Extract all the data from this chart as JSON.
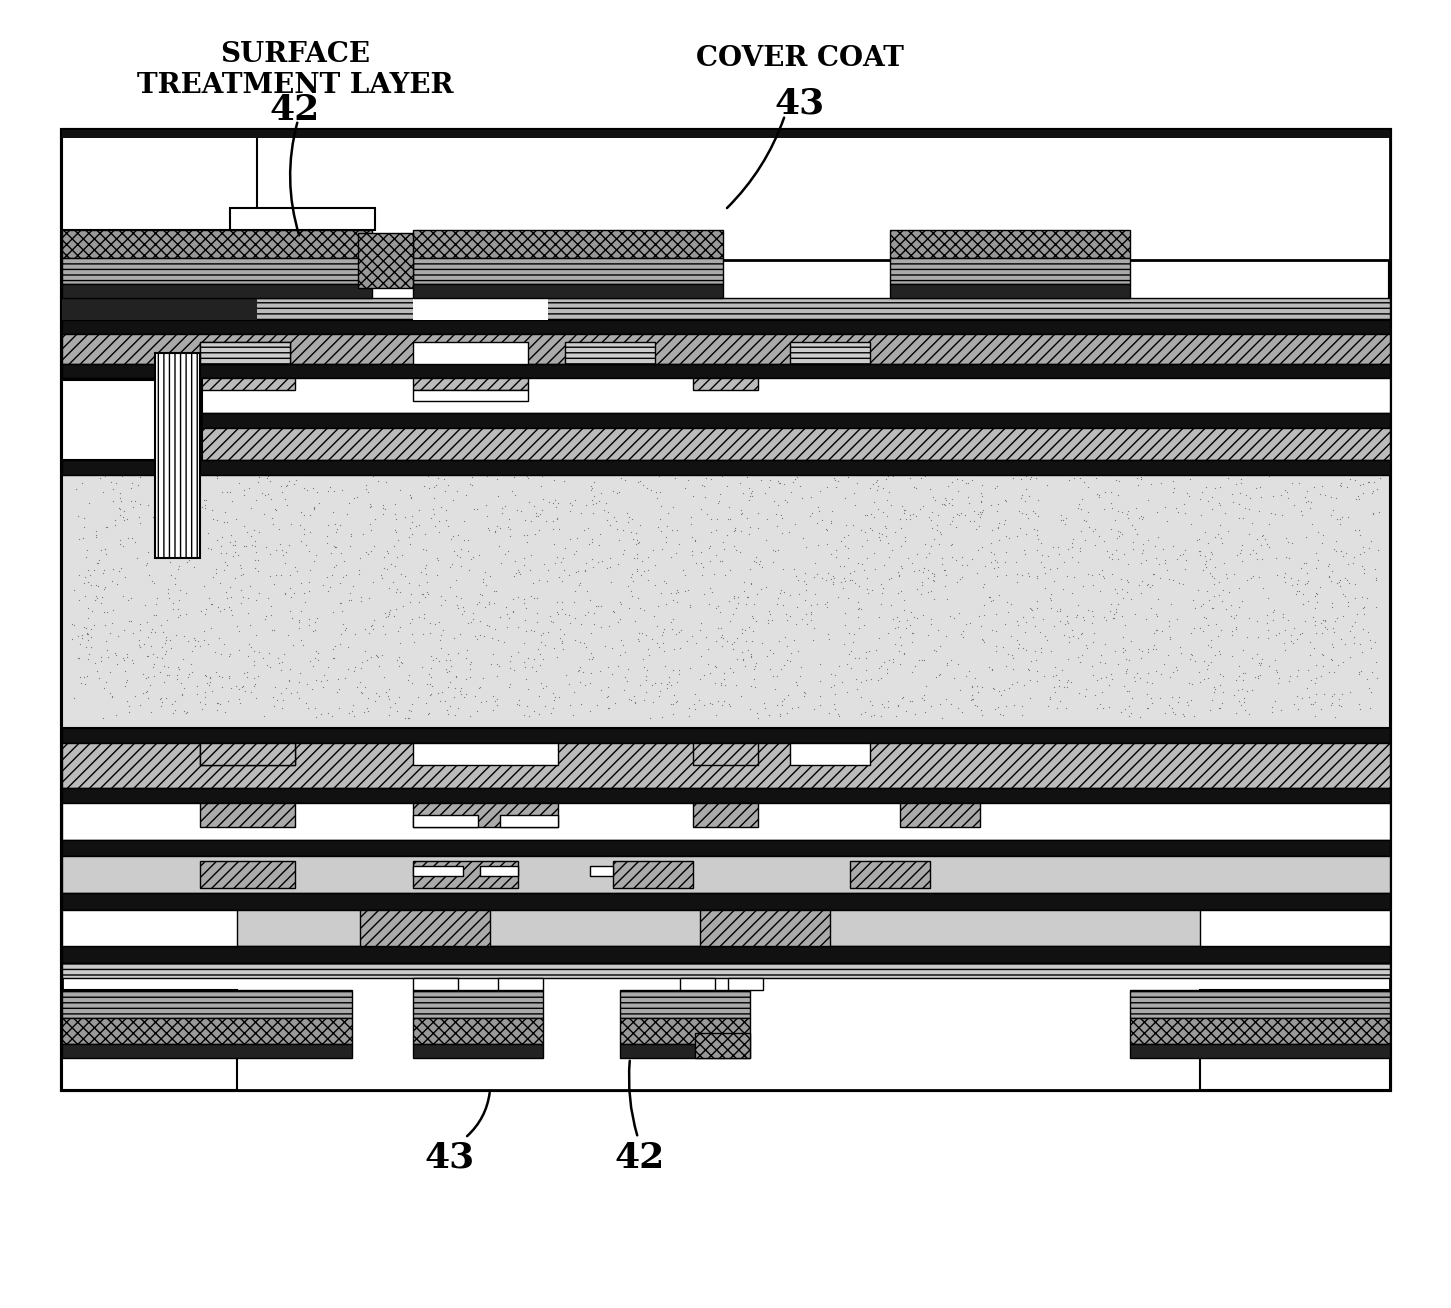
{
  "bg": "#ffffff",
  "label_surface": "SURFACE\nTREATMENT LAYER",
  "label_cover": "COVER COAT",
  "num_42": "42",
  "num_43": "43",
  "c_black": "#000000",
  "c_white": "#ffffff",
  "c_dark": "#111111",
  "c_mid_gray": "#888888",
  "c_light_gray": "#cccccc",
  "c_stipple": "#e8e8e8"
}
